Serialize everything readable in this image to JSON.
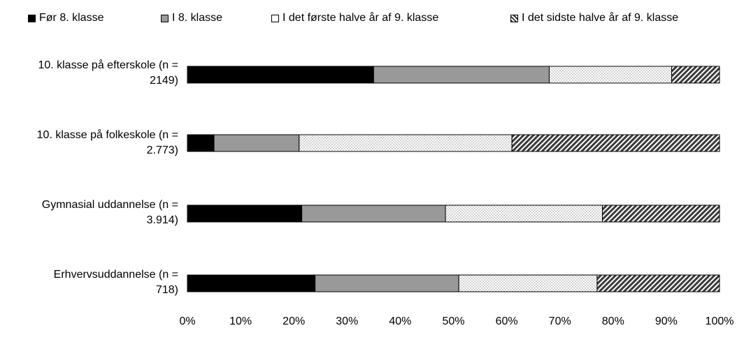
{
  "chart_data": {
    "type": "bar",
    "orientation": "horizontal",
    "stacked": true,
    "percent": true,
    "title": "",
    "xlabel": "",
    "ylabel": "",
    "categories": [
      [
        "10. klasse på efterskole (n =",
        "2149)"
      ],
      [
        "10. klasse på folkeskole (n =",
        "2.773)"
      ],
      [
        "Gymnasial uddannelse (n =",
        "3.914)"
      ],
      [
        "Erhvervsuddannelse (n =",
        "718)"
      ]
    ],
    "series": [
      {
        "name": "Før 8. klasse",
        "pattern": "solid-black",
        "values": [
          35,
          5,
          21.5,
          24
        ]
      },
      {
        "name": "I 8. klasse",
        "pattern": "solid-gray",
        "values": [
          33,
          16,
          27,
          27
        ]
      },
      {
        "name": "I det første halve år af 9. klasse",
        "pattern": "dots",
        "values": [
          23,
          40,
          29.5,
          26
        ]
      },
      {
        "name": "I det sidste halve år af 9. klasse",
        "pattern": "hatch",
        "values": [
          9,
          39,
          22,
          23
        ]
      }
    ],
    "xlim": [
      0,
      100
    ],
    "xticks": [
      "0%",
      "10%",
      "20%",
      "30%",
      "40%",
      "50%",
      "60%",
      "70%",
      "80%",
      "90%",
      "100%"
    ],
    "grid": false,
    "legend": "top",
    "colors": {
      "black": "#000000",
      "gray": "#999999",
      "dots": "#bfbfbf",
      "hatch": "#555555"
    }
  }
}
